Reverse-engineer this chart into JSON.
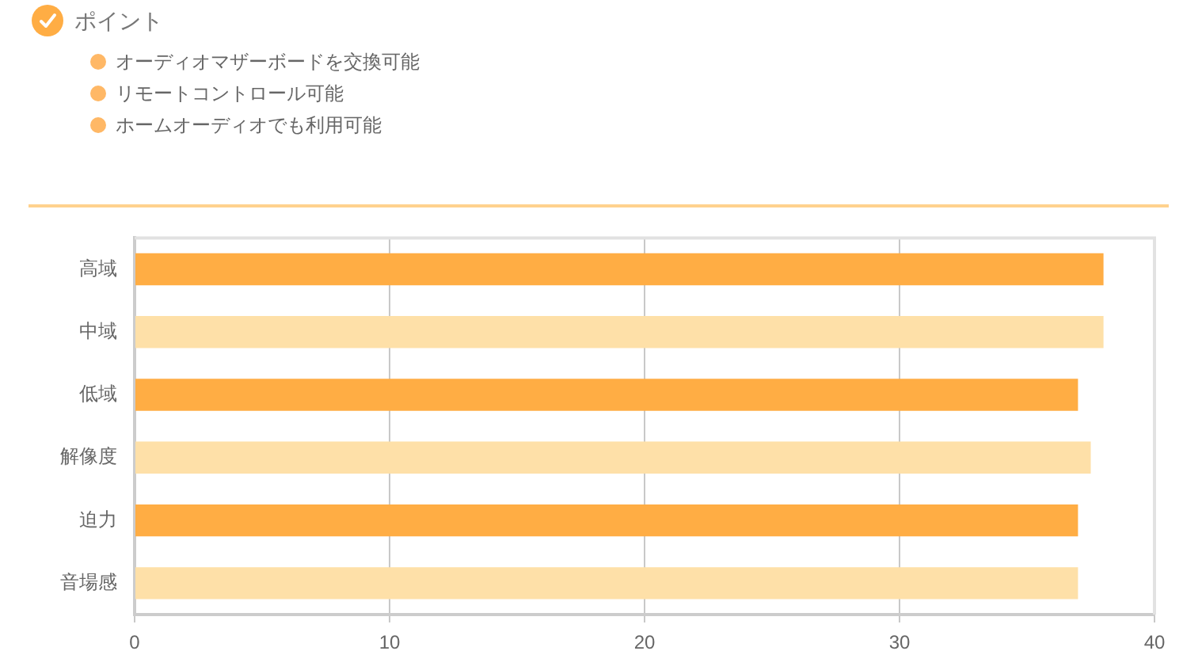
{
  "chart_data": {
    "type": "bar",
    "title": "ポイント",
    "annotations": [
      "オーディオマザーボードを交換可能",
      "リモートコントロール可能",
      "ホームオーディオでも利用可能"
    ],
    "orientation": "horizontal",
    "categories": [
      "高域",
      "中域",
      "低域",
      "解像度",
      "迫力",
      "音場感"
    ],
    "values": [
      38,
      38,
      37,
      37.5,
      37,
      37
    ],
    "colors": [
      "#ffad44",
      "#fee0a8",
      "#ffad44",
      "#fee0a8",
      "#ffad44",
      "#fee0a8"
    ],
    "xlim": [
      0,
      40
    ],
    "xticks": [
      0,
      10,
      20,
      30,
      40
    ],
    "grid": "x"
  }
}
